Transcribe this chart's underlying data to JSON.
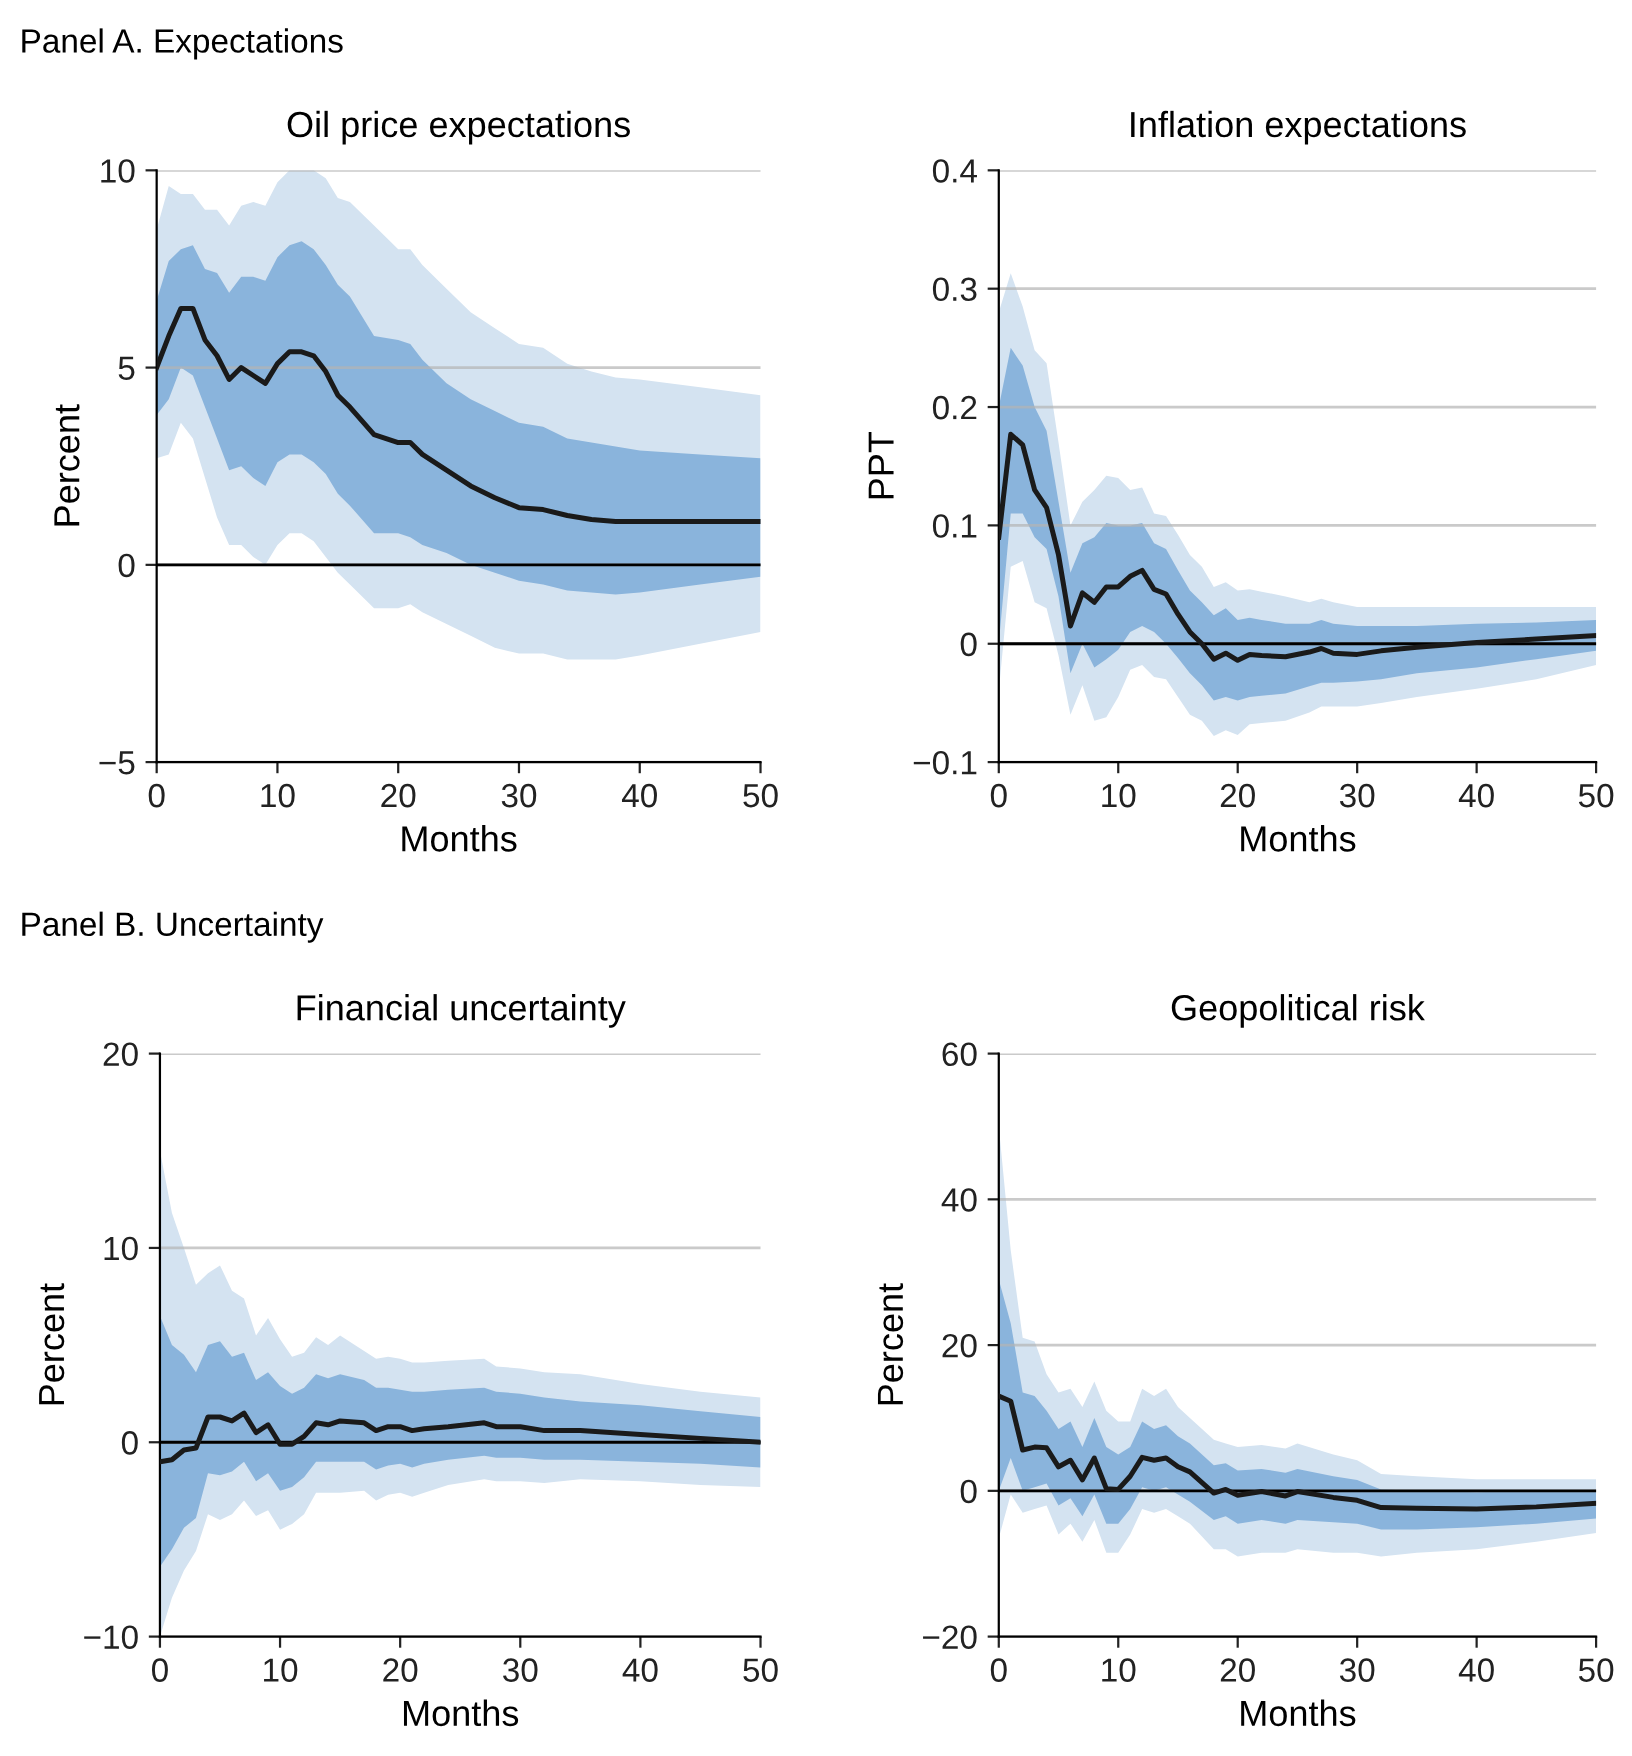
{
  "chart_data": [
    {
      "type": "line",
      "title": "Oil price expectations",
      "xlabel": "Months",
      "ylabel": "Percent",
      "annotations": [
        "Panel A. Expectations"
      ],
      "xlim": [
        0,
        50
      ],
      "xticks": [
        0,
        10,
        20,
        30,
        40,
        50
      ],
      "ylim": [
        -5,
        10
      ],
      "yticks": [
        {
          "value": -5,
          "label": "−5"
        },
        0,
        5,
        10
      ],
      "grid": "y",
      "ref_lines": [
        {
          "axis": "y",
          "value": 0,
          "color": "#000000"
        }
      ],
      "series": [
        {
          "color": "#d4e3f1",
          "x": [
            0,
            1,
            2,
            3,
            4,
            5,
            6,
            7,
            8,
            9,
            10,
            11,
            12,
            13,
            14,
            15,
            16,
            18,
            20,
            21,
            22,
            24,
            26,
            28,
            30,
            32,
            34,
            36,
            38,
            40,
            45,
            50
          ],
          "values": [
            null,
            null,
            null,
            null,
            null,
            null,
            null,
            null,
            null,
            null,
            null,
            null,
            null,
            null,
            null,
            null,
            null,
            null,
            null,
            null,
            null,
            null,
            null,
            null,
            null,
            null,
            null,
            null,
            null,
            null,
            null,
            null
          ],
          "lower": [
            2.7,
            2.8,
            3.6,
            3.2,
            2.2,
            1.2,
            0.5,
            0.5,
            0.2,
            0.0,
            0.5,
            0.8,
            0.8,
            0.6,
            0.2,
            -0.2,
            -0.5,
            -1.1,
            -1.1,
            -1.0,
            -1.2,
            -1.5,
            -1.8,
            -2.1,
            -2.25,
            -2.25,
            -2.4,
            -2.4,
            -2.4,
            -2.3,
            -2.0,
            -1.7
          ],
          "upper": [
            8.5,
            9.6,
            9.4,
            9.4,
            9.0,
            9.0,
            8.6,
            9.1,
            9.2,
            9.1,
            9.7,
            10,
            10,
            10,
            9.8,
            9.3,
            9.2,
            8.6,
            8.0,
            8.0,
            7.6,
            7.0,
            6.4,
            6.0,
            5.6,
            5.5,
            5.1,
            4.9,
            4.75,
            4.7,
            4.5,
            4.3
          ]
        },
        {
          "color": "#8ab4dc",
          "x": [
            0,
            1,
            2,
            3,
            4,
            5,
            6,
            7,
            8,
            9,
            10,
            11,
            12,
            13,
            14,
            15,
            16,
            18,
            20,
            21,
            22,
            24,
            26,
            28,
            30,
            32,
            34,
            36,
            38,
            40,
            45,
            50
          ],
          "values": [
            null,
            null,
            null,
            null,
            null,
            null,
            null,
            null,
            null,
            null,
            null,
            null,
            null,
            null,
            null,
            null,
            null,
            null,
            null,
            null,
            null,
            null,
            null,
            null,
            null,
            null,
            null,
            null,
            null,
            null,
            null,
            null
          ],
          "lower": [
            3.8,
            4.2,
            5.0,
            4.8,
            4.0,
            3.2,
            2.4,
            2.5,
            2.2,
            2.0,
            2.6,
            2.8,
            2.8,
            2.6,
            2.3,
            1.8,
            1.5,
            0.8,
            0.8,
            0.7,
            0.5,
            0.3,
            0.0,
            -0.2,
            -0.4,
            -0.5,
            -0.65,
            -0.7,
            -0.75,
            -0.7,
            -0.5,
            -0.3
          ],
          "upper": [
            6.7,
            7.7,
            8.0,
            8.1,
            7.5,
            7.4,
            6.9,
            7.3,
            7.3,
            7.2,
            7.8,
            8.1,
            8.2,
            8.0,
            7.6,
            7.1,
            6.8,
            5.8,
            5.7,
            5.6,
            5.2,
            4.6,
            4.2,
            3.9,
            3.6,
            3.5,
            3.2,
            3.1,
            3.0,
            2.9,
            2.8,
            2.7
          ]
        },
        {
          "color": "#1a1a1a",
          "x": [
            0,
            1,
            2,
            3,
            4,
            5,
            6,
            7,
            8,
            9,
            10,
            11,
            12,
            13,
            14,
            15,
            16,
            18,
            20,
            21,
            22,
            24,
            26,
            28,
            30,
            32,
            34,
            36,
            38,
            40,
            45,
            50
          ],
          "values": [
            5.0,
            5.8,
            6.5,
            6.5,
            5.7,
            5.3,
            4.7,
            5.0,
            4.8,
            4.6,
            5.1,
            5.4,
            5.4,
            5.3,
            4.9,
            4.3,
            4.0,
            3.3,
            3.1,
            3.1,
            2.8,
            2.4,
            2.0,
            1.7,
            1.45,
            1.4,
            1.25,
            1.15,
            1.1,
            1.1,
            1.1,
            1.1
          ]
        }
      ]
    },
    {
      "type": "line",
      "title": "Inflation expectations",
      "xlabel": "Months",
      "ylabel": "PPT",
      "xlim": [
        0,
        50
      ],
      "xticks": [
        0,
        10,
        20,
        30,
        40,
        50
      ],
      "ylim": [
        -0.1,
        0.4
      ],
      "yticks": [
        {
          "value": -0.1,
          "label": "−0.1"
        },
        0,
        0.1,
        0.2,
        0.3,
        0.4
      ],
      "grid": "y",
      "ref_lines": [
        {
          "axis": "y",
          "value": 0,
          "color": "#000000"
        }
      ],
      "series": [
        {
          "color": "#d4e3f1",
          "x": [
            0,
            1,
            2,
            3,
            4,
            5,
            6,
            7,
            8,
            9,
            10,
            11,
            12,
            13,
            14,
            15,
            16,
            17,
            18,
            19,
            20,
            21,
            22,
            24,
            26,
            27,
            28,
            30,
            32,
            35,
            40,
            45,
            50
          ],
          "values": [
            null,
            null,
            null,
            null,
            null,
            null,
            null,
            null,
            null,
            null,
            null,
            null,
            null,
            null,
            null,
            null,
            null,
            null,
            null,
            null,
            null,
            null,
            null,
            null,
            null,
            null,
            null,
            null,
            null,
            null,
            null,
            null,
            null
          ],
          "lower": [
            -0.04,
            0.065,
            0.07,
            0.035,
            0.03,
            -0.01,
            -0.06,
            -0.035,
            -0.065,
            -0.062,
            -0.045,
            -0.022,
            -0.018,
            -0.028,
            -0.03,
            -0.045,
            -0.06,
            -0.065,
            -0.078,
            -0.073,
            -0.077,
            -0.068,
            -0.067,
            -0.065,
            -0.058,
            -0.053,
            -0.053,
            -0.053,
            -0.05,
            -0.045,
            -0.038,
            -0.03,
            -0.018
          ],
          "upper": [
            0.28,
            0.313,
            0.285,
            0.248,
            0.237,
            0.17,
            0.1,
            0.12,
            0.13,
            0.142,
            0.14,
            0.13,
            0.132,
            0.11,
            0.108,
            0.092,
            0.075,
            0.065,
            0.048,
            0.052,
            0.045,
            0.046,
            0.044,
            0.04,
            0.035,
            0.038,
            0.035,
            0.031,
            0.031,
            0.031,
            0.031,
            0.031,
            0.031
          ]
        },
        {
          "color": "#8ab4dc",
          "x": [
            0,
            1,
            2,
            3,
            4,
            5,
            6,
            7,
            8,
            9,
            10,
            11,
            12,
            13,
            14,
            15,
            16,
            17,
            18,
            19,
            20,
            21,
            22,
            24,
            26,
            27,
            28,
            30,
            32,
            35,
            40,
            45,
            50
          ],
          "values": [
            null,
            null,
            null,
            null,
            null,
            null,
            null,
            null,
            null,
            null,
            null,
            null,
            null,
            null,
            null,
            null,
            null,
            null,
            null,
            null,
            null,
            null,
            null,
            null,
            null,
            null,
            null,
            null,
            null,
            null,
            null,
            null,
            null
          ],
          "lower": [
            0.0,
            0.11,
            0.11,
            0.09,
            0.08,
            0.04,
            -0.025,
            0.0,
            -0.02,
            -0.013,
            -0.005,
            0.01,
            0.015,
            0.01,
            0.0,
            -0.012,
            -0.025,
            -0.035,
            -0.048,
            -0.045,
            -0.048,
            -0.045,
            -0.044,
            -0.042,
            -0.036,
            -0.033,
            -0.033,
            -0.032,
            -0.03,
            -0.025,
            -0.02,
            -0.013,
            -0.006
          ],
          "upper": [
            0.2,
            0.25,
            0.235,
            0.2,
            0.18,
            0.12,
            0.06,
            0.085,
            0.09,
            0.102,
            0.1,
            0.1,
            0.102,
            0.085,
            0.08,
            0.062,
            0.045,
            0.035,
            0.024,
            0.03,
            0.02,
            0.022,
            0.02,
            0.017,
            0.017,
            0.02,
            0.017,
            0.015,
            0.015,
            0.015,
            0.017,
            0.018,
            0.02
          ]
        },
        {
          "color": "#1a1a1a",
          "x": [
            0,
            1,
            2,
            3,
            4,
            5,
            6,
            7,
            8,
            9,
            10,
            11,
            12,
            13,
            14,
            15,
            16,
            17,
            18,
            19,
            20,
            21,
            22,
            24,
            26,
            27,
            28,
            30,
            32,
            35,
            40,
            45,
            50
          ],
          "values": [
            0.09,
            0.177,
            0.168,
            0.13,
            0.115,
            0.075,
            0.015,
            0.043,
            0.035,
            0.048,
            0.048,
            0.057,
            0.062,
            0.046,
            0.042,
            0.025,
            0.01,
            0.0,
            -0.013,
            -0.008,
            -0.014,
            -0.009,
            -0.01,
            -0.011,
            -0.007,
            -0.004,
            -0.008,
            -0.009,
            -0.006,
            -0.003,
            0.001,
            0.004,
            0.007
          ]
        }
      ]
    },
    {
      "type": "line",
      "title": "Financial uncertainty",
      "xlabel": "Months",
      "ylabel": "Percent",
      "annotations": [
        "Panel B. Uncertainty"
      ],
      "xlim": [
        0,
        50
      ],
      "xticks": [
        0,
        10,
        20,
        30,
        40,
        50
      ],
      "ylim": [
        -10,
        20
      ],
      "yticks": [
        {
          "value": -10,
          "label": "−10"
        },
        0,
        10,
        20
      ],
      "grid": "y",
      "ref_lines": [
        {
          "axis": "y",
          "value": 0,
          "color": "#000000"
        }
      ],
      "series": [
        {
          "color": "#d4e3f1",
          "x": [
            0,
            1,
            2,
            3,
            4,
            5,
            6,
            7,
            8,
            9,
            10,
            11,
            12,
            13,
            14,
            15,
            17,
            18,
            19,
            20,
            21,
            22,
            24,
            27,
            28,
            30,
            32,
            35,
            40,
            45,
            50
          ],
          "values": [
            null,
            null,
            null,
            null,
            null,
            null,
            null,
            null,
            null,
            null,
            null,
            null,
            null,
            null,
            null,
            null,
            null,
            null,
            null,
            null,
            null,
            null,
            null,
            null,
            null,
            null,
            null,
            null,
            null,
            null,
            null
          ],
          "lower": [
            -10.0,
            -8.0,
            -6.6,
            -5.6,
            -3.7,
            -4.0,
            -3.7,
            -3.0,
            -3.8,
            -3.5,
            -4.5,
            -4.2,
            -3.7,
            -2.6,
            -2.6,
            -2.6,
            -2.5,
            -3.0,
            -2.7,
            -2.6,
            -2.8,
            -2.6,
            -2.2,
            -1.9,
            -2.0,
            -2.0,
            -2.1,
            -1.9,
            -2.0,
            -2.2,
            -2.3
          ],
          "upper": [
            15.0,
            11.8,
            10.0,
            8.1,
            8.7,
            9.1,
            7.8,
            7.4,
            5.5,
            6.4,
            5.3,
            4.4,
            4.6,
            5.4,
            5.0,
            5.5,
            4.7,
            4.3,
            4.4,
            4.3,
            4.1,
            4.1,
            4.2,
            4.3,
            3.9,
            3.8,
            3.6,
            3.5,
            3.0,
            2.6,
            2.3
          ]
        },
        {
          "color": "#8ab4dc",
          "x": [
            0,
            1,
            2,
            3,
            4,
            5,
            6,
            7,
            8,
            9,
            10,
            11,
            12,
            13,
            14,
            15,
            17,
            18,
            19,
            20,
            21,
            22,
            24,
            27,
            28,
            30,
            32,
            35,
            40,
            45,
            50
          ],
          "values": [
            null,
            null,
            null,
            null,
            null,
            null,
            null,
            null,
            null,
            null,
            null,
            null,
            null,
            null,
            null,
            null,
            null,
            null,
            null,
            null,
            null,
            null,
            null,
            null,
            null,
            null,
            null,
            null,
            null,
            null,
            null
          ],
          "lower": [
            -6.4,
            -5.5,
            -4.4,
            -3.9,
            -1.6,
            -1.7,
            -1.5,
            -1.0,
            -2.0,
            -1.6,
            -2.5,
            -2.3,
            -1.8,
            -1.0,
            -1.0,
            -1.0,
            -1.0,
            -1.4,
            -1.2,
            -1.1,
            -1.3,
            -1.1,
            -0.9,
            -0.7,
            -0.8,
            -0.8,
            -0.9,
            -0.9,
            -1.0,
            -1.1,
            -1.3
          ],
          "upper": [
            6.5,
            5.0,
            4.5,
            3.6,
            5.0,
            5.2,
            4.4,
            4.6,
            3.2,
            3.6,
            2.9,
            2.5,
            2.8,
            3.5,
            3.3,
            3.5,
            3.2,
            2.8,
            2.8,
            2.7,
            2.6,
            2.6,
            2.7,
            2.8,
            2.6,
            2.5,
            2.3,
            2.1,
            1.9,
            1.6,
            1.3
          ]
        },
        {
          "color": "#1a1a1a",
          "x": [
            0,
            1,
            2,
            3,
            4,
            5,
            6,
            7,
            8,
            9,
            10,
            11,
            12,
            13,
            14,
            15,
            17,
            18,
            19,
            20,
            21,
            22,
            24,
            27,
            28,
            30,
            32,
            35,
            40,
            45,
            50
          ],
          "values": [
            -1.0,
            -0.9,
            -0.4,
            -0.3,
            1.3,
            1.3,
            1.1,
            1.5,
            0.5,
            0.9,
            -0.1,
            -0.1,
            0.3,
            1.0,
            0.9,
            1.1,
            1.0,
            0.6,
            0.8,
            0.8,
            0.6,
            0.7,
            0.8,
            1.0,
            0.8,
            0.8,
            0.6,
            0.6,
            0.4,
            0.2,
            0.0
          ]
        }
      ]
    },
    {
      "type": "line",
      "title": "Geopolitical risk",
      "xlabel": "Months",
      "ylabel": "Percent",
      "xlim": [
        0,
        50
      ],
      "xticks": [
        0,
        10,
        20,
        30,
        40,
        50
      ],
      "ylim": [
        -20,
        60
      ],
      "yticks": [
        {
          "value": -20,
          "label": "−20"
        },
        0,
        20,
        40,
        60
      ],
      "grid": "y",
      "ref_lines": [
        {
          "axis": "y",
          "value": 0,
          "color": "#000000"
        }
      ],
      "series": [
        {
          "color": "#d4e3f1",
          "x": [
            0,
            1,
            2,
            3,
            4,
            5,
            6,
            7,
            8,
            9,
            10,
            11,
            12,
            13,
            14,
            15,
            16,
            18,
            19,
            20,
            22,
            24,
            25,
            28,
            30,
            32,
            35,
            40,
            45,
            50
          ],
          "values": [
            null,
            null,
            null,
            null,
            null,
            null,
            null,
            null,
            null,
            null,
            null,
            null,
            null,
            null,
            null,
            null,
            null,
            null,
            null,
            null,
            null,
            null,
            null,
            null,
            null,
            null,
            null,
            null,
            null,
            null
          ],
          "lower": [
            -6.5,
            -0.5,
            -3,
            -2.5,
            -2,
            -6,
            -4.5,
            -7,
            -4,
            -8.5,
            -8.5,
            -6,
            -2.5,
            -3,
            -2.5,
            -3.5,
            -4.5,
            -8,
            -8,
            -9,
            -8.5,
            -8.5,
            -8,
            -8.5,
            -8.5,
            -9,
            -8.5,
            -8,
            -7,
            -5.8
          ],
          "upper": [
            50,
            33,
            21,
            20.5,
            16,
            13.5,
            14,
            11.5,
            15,
            11,
            9.5,
            9.5,
            14,
            13,
            14,
            11.5,
            10,
            7,
            6.5,
            6,
            6.3,
            5.8,
            6.5,
            5,
            4.2,
            2.3,
            2,
            1.6,
            1.6,
            1.6
          ]
        },
        {
          "color": "#8ab4dc",
          "x": [
            0,
            1,
            2,
            3,
            4,
            5,
            6,
            7,
            8,
            9,
            10,
            11,
            12,
            13,
            14,
            15,
            16,
            18,
            19,
            20,
            22,
            24,
            25,
            28,
            30,
            32,
            35,
            40,
            45,
            50
          ],
          "values": [
            null,
            null,
            null,
            null,
            null,
            null,
            null,
            null,
            null,
            null,
            null,
            null,
            null,
            null,
            null,
            null,
            null,
            null,
            null,
            null,
            null,
            null,
            null,
            null,
            null,
            null,
            null,
            null,
            null,
            null
          ],
          "lower": [
            0,
            4.5,
            0,
            0.5,
            1,
            -2,
            -1,
            -3.5,
            -0.5,
            -4.5,
            -4.5,
            -2.5,
            0.5,
            0,
            0.5,
            -0.5,
            -1.5,
            -4,
            -3.5,
            -4.5,
            -4,
            -4.5,
            -4,
            -4.3,
            -4.5,
            -5.3,
            -5.3,
            -5,
            -4.5,
            -3.8
          ],
          "upper": [
            29,
            23,
            13.5,
            13,
            11,
            8.5,
            9.5,
            6,
            10,
            6,
            5,
            6,
            9.5,
            8.5,
            9,
            7.5,
            6.5,
            3.5,
            3.8,
            2.8,
            3,
            2.5,
            3,
            2,
            1.5,
            0.2,
            0,
            -0.2,
            0,
            0
          ]
        },
        {
          "color": "#1a1a1a",
          "x": [
            0,
            1,
            2,
            3,
            4,
            5,
            6,
            7,
            8,
            9,
            10,
            11,
            12,
            13,
            14,
            15,
            16,
            18,
            19,
            20,
            22,
            24,
            25,
            28,
            30,
            32,
            35,
            40,
            45,
            50
          ],
          "values": [
            13.0,
            12.3,
            5.6,
            6.0,
            5.9,
            3.3,
            4.2,
            1.5,
            4.5,
            0.3,
            0.2,
            2.0,
            4.6,
            4.2,
            4.5,
            3.3,
            2.6,
            -0.3,
            0.2,
            -0.6,
            -0.1,
            -0.7,
            -0.1,
            -0.9,
            -1.3,
            -2.3,
            -2.4,
            -2.5,
            -2.2,
            -1.7
          ]
        }
      ]
    }
  ]
}
